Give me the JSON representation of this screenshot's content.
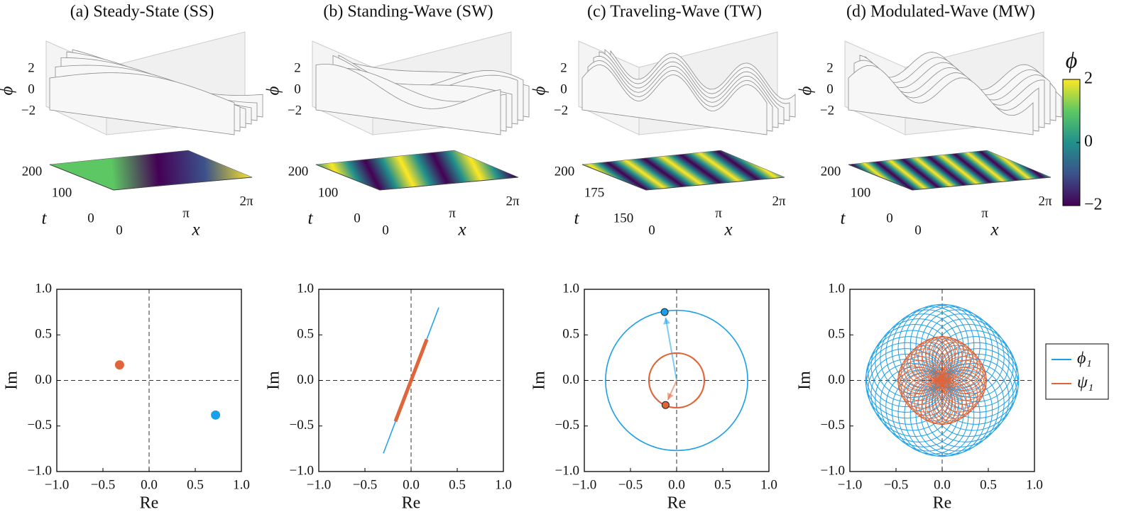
{
  "surface_panels": [
    {
      "title": "(a) Steady-State (SS)",
      "zlabel": "ϕ",
      "zticks": [
        "2",
        "0",
        "−2"
      ],
      "tlabel": "t",
      "tticks": [
        "200",
        "100",
        "0"
      ],
      "xlabel": "x",
      "xticks": [
        "0",
        "π",
        "2π"
      ]
    },
    {
      "title": "(b) Standing-Wave (SW)",
      "zlabel": "ϕ",
      "zticks": [
        "2",
        "0",
        "−2"
      ],
      "tlabel": "t",
      "tticks": [
        "200",
        "100",
        "0"
      ],
      "xlabel": "x",
      "xticks": [
        "0",
        "π",
        "2π"
      ]
    },
    {
      "title": "(c) Traveling-Wave (TW)",
      "zlabel": "ϕ",
      "zticks": [
        "2",
        "0",
        "−2"
      ],
      "tlabel": "t",
      "tticks": [
        "200",
        "175",
        "150"
      ],
      "xlabel": "x",
      "xticks": [
        "0",
        "π",
        "2π"
      ]
    },
    {
      "title": "(d) Modulated-Wave (MW)",
      "zlabel": "ϕ",
      "zticks": [
        "2",
        "0",
        "−2"
      ],
      "tlabel": "t",
      "tticks": [
        "200",
        "100",
        "0"
      ],
      "xlabel": "x",
      "xticks": [
        "0",
        "π",
        "2π"
      ]
    }
  ],
  "colorbar": {
    "label": "ϕ",
    "lim": [
      -2,
      2
    ],
    "ticks": [
      2,
      0,
      {
        "value": -2,
        "label": "−2"
      }
    ],
    "colors": [
      "#440154",
      "#3b528b",
      "#21908c",
      "#5dc863",
      "#fde725"
    ]
  },
  "chart_data": [
    {
      "type": "scatter",
      "xlabel": "Re",
      "ylabel": "Im",
      "xlim": [
        -1,
        1
      ],
      "ylim": [
        -1,
        1
      ],
      "xticks": [
        {
          "value": -1,
          "label": "−1.0"
        },
        {
          "value": -0.5,
          "label": "−0.5"
        },
        {
          "value": 0,
          "label": "0.0"
        },
        {
          "value": 0.5,
          "label": "0.5"
        },
        {
          "value": 1,
          "label": "1.0"
        }
      ],
      "yticks": [
        {
          "value": -1,
          "label": "−1.0"
        },
        {
          "value": -0.5,
          "label": "−0.5"
        },
        {
          "value": 0,
          "label": "0.0"
        },
        {
          "value": 0.5,
          "label": "0.5"
        },
        {
          "value": 1,
          "label": "1.0"
        }
      ],
      "series": [
        {
          "color": "#1a9fe8",
          "x": [
            0.72
          ],
          "values": [
            -0.38
          ]
        },
        {
          "color": "#e0653a",
          "x": [
            -0.32
          ],
          "values": [
            0.17
          ]
        }
      ]
    },
    {
      "type": "line",
      "xlabel": "Re",
      "ylabel": "Im",
      "xlim": [
        -1,
        1
      ],
      "ylim": [
        -1,
        1
      ],
      "xticks": [
        {
          "value": -1,
          "label": "−1.0"
        },
        {
          "value": -0.5,
          "label": "−0.5"
        },
        {
          "value": 0,
          "label": "0.0"
        },
        {
          "value": 0.5,
          "label": "0.5"
        },
        {
          "value": 1,
          "label": "1.0"
        }
      ],
      "yticks": [
        {
          "value": -1,
          "label": "−1.0"
        },
        {
          "value": -0.5,
          "label": "−0.5"
        },
        {
          "value": 0,
          "label": "0.0"
        },
        {
          "value": 0.5,
          "label": "0.5"
        },
        {
          "value": 1,
          "label": "1.0"
        }
      ],
      "series": [
        {
          "color": "#1a9fe8",
          "x": [
            -0.3,
            0.3
          ],
          "values": [
            -0.8,
            0.8
          ],
          "linewidth": 1.5
        },
        {
          "color": "#e0653a",
          "x": [
            -0.17,
            0.17
          ],
          "values": [
            -0.45,
            0.45
          ],
          "linewidth": 5
        }
      ]
    },
    {
      "type": "orbit",
      "xlabel": "Re",
      "ylabel": "Im",
      "xlim": [
        -1,
        1
      ],
      "ylim": [
        -1,
        1
      ],
      "xticks": [
        {
          "value": -1,
          "label": "−1.0"
        },
        {
          "value": -0.5,
          "label": "−0.5"
        },
        {
          "value": 0,
          "label": "0.0"
        },
        {
          "value": 0.5,
          "label": "0.5"
        },
        {
          "value": 1,
          "label": "1.0"
        }
      ],
      "yticks": [
        {
          "value": -1,
          "label": "−1.0"
        },
        {
          "value": -0.5,
          "label": "−0.5"
        },
        {
          "value": 0,
          "label": "0.0"
        },
        {
          "value": 0.5,
          "label": "0.5"
        },
        {
          "value": 1,
          "label": "1.0"
        }
      ],
      "series": [
        {
          "color": "#1a9fe8",
          "radius": 0.77,
          "x": [
            -0.13
          ],
          "values": [
            0.75
          ]
        },
        {
          "color": "#e0653a",
          "radius": 0.3,
          "x": [
            -0.12
          ],
          "values": [
            -0.27
          ]
        }
      ]
    },
    {
      "type": "rosette",
      "xlabel": "Re",
      "ylabel": "Im",
      "xlim": [
        -1,
        1
      ],
      "ylim": [
        -1,
        1
      ],
      "xticks": [
        {
          "value": -1,
          "label": "−1.0"
        },
        {
          "value": -0.5,
          "label": "−0.5"
        },
        {
          "value": 0,
          "label": "0.0"
        },
        {
          "value": 0.5,
          "label": "0.5"
        },
        {
          "value": 1,
          "label": "1.0"
        }
      ],
      "yticks": [
        {
          "value": -1,
          "label": "−1.0"
        },
        {
          "value": -0.5,
          "label": "−0.5"
        },
        {
          "value": 0,
          "label": "0.0"
        },
        {
          "value": 0.5,
          "label": "0.5"
        },
        {
          "value": 1,
          "label": "1.0"
        }
      ],
      "series": [
        {
          "name": "ϕ₁",
          "color": "#1a9fe8",
          "ring_radius": 0.45,
          "ring_offset": 0.38
        },
        {
          "name": "ψ₁",
          "color": "#e0653a",
          "ring_radius": 0.24,
          "ring_offset": 0.24
        }
      ]
    }
  ]
}
